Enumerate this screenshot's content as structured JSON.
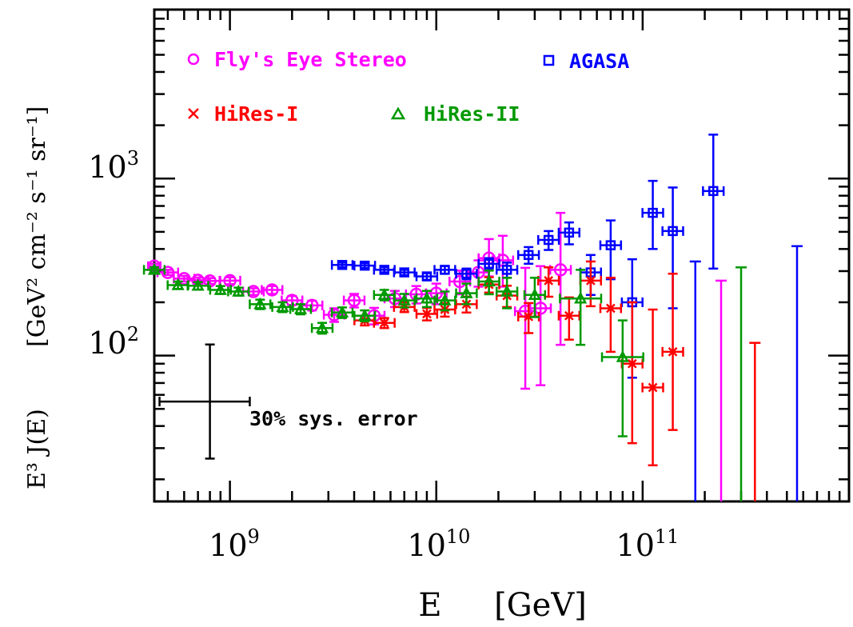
{
  "chart_data": {
    "type": "scatter",
    "log_x": true,
    "log_y": true,
    "xlim": [
      430000000.0,
      1000000000000.0
    ],
    "ylim": [
      15,
      9000
    ],
    "x_title": "E",
    "x_unit": "[GeV]",
    "y_title": "E³ J(E)",
    "y_unit_text": "[GeV² cm⁻² s⁻¹ sr⁻¹]",
    "x_tick_labels": [
      {
        "value": 1000000000.0,
        "base": "10",
        "exp": "9"
      },
      {
        "value": 10000000000.0,
        "base": "10",
        "exp": "10"
      },
      {
        "value": 100000000000.0,
        "base": "10",
        "exp": "11"
      }
    ],
    "y_tick_labels": [
      {
        "value": 100,
        "base": "10",
        "exp": "2"
      },
      {
        "value": 1000,
        "base": "10",
        "exp": "3"
      }
    ],
    "annotation": "30% sys. error",
    "sys_error": {
      "x": 800000000.0,
      "y": 55
    },
    "series": [
      {
        "name": "Fly's Eye Stereo",
        "marker": "circle",
        "color": "#ff00ff",
        "points": [
          {
            "x": 430000000.0,
            "y": 320,
            "yerr": [
              10,
              10
            ],
            "xerr": 0.03
          },
          {
            "x": 500000000.0,
            "y": 295,
            "yerr": [
              10,
              10
            ],
            "xerr": 0.05
          },
          {
            "x": 600000000.0,
            "y": 272,
            "yerr": [
              10,
              10
            ],
            "xerr": 0.05
          },
          {
            "x": 700000000.0,
            "y": 266,
            "yerr": [
              10,
              10
            ],
            "xerr": 0.05
          },
          {
            "x": 800000000.0,
            "y": 264,
            "yerr": [
              10,
              10
            ],
            "xerr": 0.05
          },
          {
            "x": 1000000000.0,
            "y": 265,
            "yerr": [
              12,
              12
            ],
            "xerr": 0.05
          },
          {
            "x": 1300000000.0,
            "y": 230,
            "yerr": [
              10,
              10
            ],
            "xerr": 0.05
          },
          {
            "x": 1600000000.0,
            "y": 235,
            "yerr": [
              12,
              12
            ],
            "xerr": 0.05
          },
          {
            "x": 2000000000.0,
            "y": 205,
            "yerr": [
              12,
              12
            ],
            "xerr": 0.05
          },
          {
            "x": 2500000000.0,
            "y": 192,
            "yerr": [
              12,
              12
            ],
            "xerr": 0.05
          },
          {
            "x": 3200000000.0,
            "y": 170,
            "yerr": [
              15,
              15
            ],
            "xerr": 0.05
          },
          {
            "x": 4000000000.0,
            "y": 205,
            "yerr": [
              18,
              18
            ],
            "xerr": 0.05
          },
          {
            "x": 5000000000.0,
            "y": 168,
            "yerr": [
              18,
              18
            ],
            "xerr": 0.05
          },
          {
            "x": 6300000000.0,
            "y": 210,
            "yerr": [
              22,
              22
            ],
            "xerr": 0.05
          },
          {
            "x": 8000000000.0,
            "y": 222,
            "yerr": [
              25,
              25
            ],
            "xerr": 0.05
          },
          {
            "x": 10000000000.0,
            "y": 225,
            "yerr": [
              30,
              30
            ],
            "xerr": 0.05
          },
          {
            "x": 13000000000.0,
            "y": 262,
            "yerr": [
              40,
              40
            ],
            "xerr": 0.05
          },
          {
            "x": 16000000000.0,
            "y": 295,
            "yerr": [
              50,
              50
            ],
            "xerr": 0.05
          },
          {
            "x": 18000000000.0,
            "y": 355,
            "yerr": [
              75,
              100
            ],
            "xerr": 0.05
          },
          {
            "x": 21000000000.0,
            "y": 345,
            "yerr": [
              100,
              130
            ],
            "xerr": 0.05
          },
          {
            "x": 27000000000.0,
            "y": 178,
            "yerr": [
              113,
              135
            ],
            "xerr": 0.05
          },
          {
            "x": 32000000000.0,
            "y": 185,
            "yerr": [
              117,
              135
            ],
            "xerr": 0.05
          },
          {
            "x": 40000000000.0,
            "y": 305,
            "yerr": [
              190,
              335
            ],
            "xerr": 0.05
          },
          {
            "x": 240000000000.0,
            "y": 0,
            "ul": 265
          }
        ]
      },
      {
        "name": "AGASA",
        "marker": "square",
        "color": "#0000ff",
        "points": [
          {
            "x": 3500000000.0,
            "y": 325,
            "yerr": [
              10,
              10
            ],
            "xerr": 0.05
          },
          {
            "x": 4500000000.0,
            "y": 322,
            "yerr": [
              10,
              10
            ],
            "xerr": 0.05
          },
          {
            "x": 5600000000.0,
            "y": 305,
            "yerr": [
              10,
              10
            ],
            "xerr": 0.05
          },
          {
            "x": 7000000000.0,
            "y": 295,
            "yerr": [
              10,
              10
            ],
            "xerr": 0.05
          },
          {
            "x": 9000000000.0,
            "y": 280,
            "yerr": [
              12,
              12
            ],
            "xerr": 0.05
          },
          {
            "x": 11000000000.0,
            "y": 305,
            "yerr": [
              15,
              15
            ],
            "xerr": 0.05
          },
          {
            "x": 14000000000.0,
            "y": 290,
            "yerr": [
              20,
              20
            ],
            "xerr": 0.05
          },
          {
            "x": 18000000000.0,
            "y": 330,
            "yerr": [
              25,
              25
            ],
            "xerr": 0.05
          },
          {
            "x": 22000000000.0,
            "y": 305,
            "yerr": [
              30,
              30
            ],
            "xerr": 0.05
          },
          {
            "x": 28000000000.0,
            "y": 370,
            "yerr": [
              40,
              40
            ],
            "xerr": 0.05
          },
          {
            "x": 35000000000.0,
            "y": 450,
            "yerr": [
              55,
              55
            ],
            "xerr": 0.05
          },
          {
            "x": 44000000000.0,
            "y": 495,
            "yerr": [
              70,
              70
            ],
            "xerr": 0.05
          },
          {
            "x": 56000000000.0,
            "y": 295,
            "yerr": [
              75,
              75
            ],
            "xerr": 0.05
          },
          {
            "x": 70000000000.0,
            "y": 420,
            "yerr": [
              150,
              160
            ],
            "xerr": 0.05
          },
          {
            "x": 89000000000.0,
            "y": 200,
            "yerr": [
              125,
              150
            ],
            "xerr": 0.05
          },
          {
            "x": 112000000000.0,
            "y": 640,
            "yerr": [
              240,
              330
            ],
            "xerr": 0.05
          },
          {
            "x": 140000000000.0,
            "y": 505,
            "yerr": [
              320,
              385
            ],
            "xerr": 0.05
          },
          {
            "x": 220000000000.0,
            "y": 850,
            "yerr": [
              540,
              920
            ],
            "xerr": 0.05
          },
          {
            "x": 180000000000.0,
            "y": 0,
            "ul": 340
          },
          {
            "x": 560000000000.0,
            "y": 0,
            "ul": 415
          }
        ]
      },
      {
        "name": "HiRes-I",
        "marker": "cross",
        "color": "#ff0000",
        "points": [
          {
            "x": 4500000000.0,
            "y": 158,
            "yerr": [
              10,
              10
            ],
            "xerr": 0.05
          },
          {
            "x": 5600000000.0,
            "y": 153,
            "yerr": [
              10,
              10
            ],
            "xerr": 0.05
          },
          {
            "x": 7000000000.0,
            "y": 188,
            "yerr": [
              12,
              12
            ],
            "xerr": 0.05
          },
          {
            "x": 9000000000.0,
            "y": 172,
            "yerr": [
              14,
              14
            ],
            "xerr": 0.05
          },
          {
            "x": 11000000000.0,
            "y": 182,
            "yerr": [
              16,
              16
            ],
            "xerr": 0.05
          },
          {
            "x": 14000000000.0,
            "y": 195,
            "yerr": [
              20,
              20
            ],
            "xerr": 0.05
          },
          {
            "x": 18000000000.0,
            "y": 252,
            "yerr": [
              25,
              25
            ],
            "xerr": 0.05
          },
          {
            "x": 22000000000.0,
            "y": 218,
            "yerr": [
              30,
              30
            ],
            "xerr": 0.05
          },
          {
            "x": 28000000000.0,
            "y": 166,
            "yerr": [
              32,
              32
            ],
            "xerr": 0.05
          },
          {
            "x": 35000000000.0,
            "y": 265,
            "yerr": [
              50,
              50
            ],
            "xerr": 0.05
          },
          {
            "x": 44000000000.0,
            "y": 168,
            "yerr": [
              45,
              45
            ],
            "xerr": 0.05
          },
          {
            "x": 56000000000.0,
            "y": 265,
            "yerr": [
              75,
              75
            ],
            "xerr": 0.05
          },
          {
            "x": 70000000000.0,
            "y": 185,
            "yerr": [
              80,
              90
            ],
            "xerr": 0.05
          },
          {
            "x": 89000000000.0,
            "y": 90,
            "yerr": [
              58,
              110
            ],
            "xerr": 0.05
          },
          {
            "x": 112000000000.0,
            "y": 66,
            "yerr": [
              42,
              116
            ],
            "xerr": 0.05
          },
          {
            "x": 140000000000.0,
            "y": 105,
            "yerr": [
              67,
              185
            ],
            "xerr": 0.05
          },
          {
            "x": 350000000000.0,
            "y": 0,
            "ul": 118
          }
        ]
      },
      {
        "name": "HiRes-II",
        "marker": "triangle",
        "color": "#009900",
        "points": [
          {
            "x": 430000000.0,
            "y": 305,
            "yerr": [
              10,
              10
            ],
            "xerr": 0.05
          },
          {
            "x": 560000000.0,
            "y": 250,
            "yerr": [
              12,
              12
            ],
            "xerr": 0.05
          },
          {
            "x": 700000000.0,
            "y": 248,
            "yerr": [
              12,
              12
            ],
            "xerr": 0.05
          },
          {
            "x": 900000000.0,
            "y": 235,
            "yerr": [
              12,
              12
            ],
            "xerr": 0.05
          },
          {
            "x": 1100000000.0,
            "y": 230,
            "yerr": [
              12,
              12
            ],
            "xerr": 0.05
          },
          {
            "x": 1400000000.0,
            "y": 195,
            "yerr": [
              12,
              12
            ],
            "xerr": 0.05
          },
          {
            "x": 1800000000.0,
            "y": 188,
            "yerr": [
              12,
              12
            ],
            "xerr": 0.05
          },
          {
            "x": 2200000000.0,
            "y": 183,
            "yerr": [
              12,
              12
            ],
            "xerr": 0.05
          },
          {
            "x": 2800000000.0,
            "y": 143,
            "yerr": [
              10,
              10
            ],
            "xerr": 0.05
          },
          {
            "x": 3500000000.0,
            "y": 175,
            "yerr": [
              12,
              12
            ],
            "xerr": 0.05
          },
          {
            "x": 4500000000.0,
            "y": 168,
            "yerr": [
              12,
              12
            ],
            "xerr": 0.05
          },
          {
            "x": 5600000000.0,
            "y": 220,
            "yerr": [
              15,
              15
            ],
            "xerr": 0.05
          },
          {
            "x": 7000000000.0,
            "y": 205,
            "yerr": [
              18,
              18
            ],
            "xerr": 0.05
          },
          {
            "x": 9000000000.0,
            "y": 210,
            "yerr": [
              22,
              22
            ],
            "xerr": 0.05
          },
          {
            "x": 11000000000.0,
            "y": 205,
            "yerr": [
              25,
              25
            ],
            "xerr": 0.05
          },
          {
            "x": 14000000000.0,
            "y": 225,
            "yerr": [
              30,
              30
            ],
            "xerr": 0.05
          },
          {
            "x": 18000000000.0,
            "y": 262,
            "yerr": [
              40,
              40
            ],
            "xerr": 0.05
          },
          {
            "x": 22000000000.0,
            "y": 230,
            "yerr": [
              45,
              45
            ],
            "xerr": 0.05
          },
          {
            "x": 30000000000.0,
            "y": 220,
            "yerr": [
              55,
              55
            ],
            "xerr": 0.05
          },
          {
            "x": 50000000000.0,
            "y": 210,
            "yerr": [
              95,
              95
            ],
            "xerr": 0.1
          },
          {
            "x": 80000000000.0,
            "y": 98,
            "yerr": [
              63,
              60
            ],
            "xerr": 0.1
          },
          {
            "x": 300000000000.0,
            "y": 0,
            "ul": 315
          }
        ]
      }
    ]
  }
}
